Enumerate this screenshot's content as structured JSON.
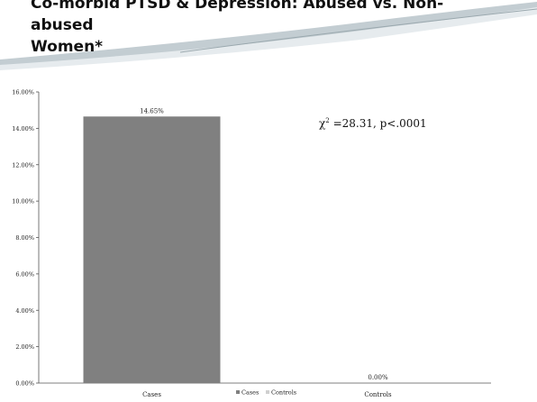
{
  "slide": {
    "title": "Co-morbid PTSD & Depression:  Abused vs. Non-abused\nWomen*",
    "colors": {
      "header_swoosh": "#b9c4c9",
      "header_light": "#e6ebee"
    }
  },
  "annotation": {
    "chi_symbol": "χ",
    "superscript": "2",
    "text": " =28.31, p<.0001"
  },
  "chart_data": {
    "type": "bar",
    "categories": [
      "Cases",
      "Controls"
    ],
    "series": [
      {
        "name": "Cases",
        "values": [
          14.65,
          null
        ],
        "color": "#808080"
      },
      {
        "name": "Controls",
        "values": [
          null,
          0.0
        ],
        "color": "#d0d0d0"
      }
    ],
    "data_labels": [
      "14.65%",
      "0.00%"
    ],
    "y_ticks": [
      "0.00%",
      "2.00%",
      "4.00%",
      "6.00%",
      "8.00%",
      "10.00%",
      "12.00%",
      "14.00%",
      "16.00%"
    ],
    "ylim": [
      0,
      16
    ],
    "grid": false,
    "legend_position": "bottom",
    "legend": [
      "Cases",
      "Controls"
    ],
    "title": "",
    "xlabel": "",
    "ylabel": ""
  }
}
